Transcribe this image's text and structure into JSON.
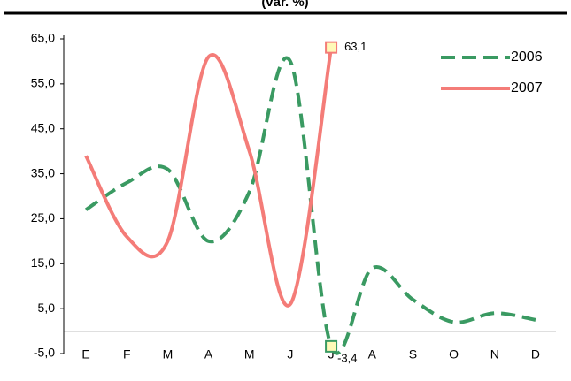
{
  "chart_data": {
    "type": "line",
    "title": "(var. %)",
    "categories": [
      "E",
      "F",
      "M",
      "A",
      "M",
      "J",
      "J",
      "A",
      "S",
      "O",
      "N",
      "D"
    ],
    "series": [
      {
        "name": "2006",
        "color": "#3a9a62",
        "dashed": true,
        "values": [
          27,
          33,
          36,
          20,
          31,
          60,
          -3.4,
          14,
          7,
          2,
          4,
          2.5
        ],
        "value_labels": [
          null,
          null,
          null,
          null,
          null,
          null,
          "-3,4",
          null,
          null,
          null,
          null,
          null
        ]
      },
      {
        "name": "2007",
        "color": "#f47c78",
        "dashed": false,
        "values": [
          39,
          21,
          20,
          61,
          40,
          6,
          63.1,
          null,
          null,
          null,
          null,
          null
        ],
        "value_labels": [
          null,
          null,
          null,
          null,
          null,
          null,
          "63,1",
          null,
          null,
          null,
          null,
          null
        ]
      }
    ],
    "ylim": [
      -5,
      65
    ],
    "yticks": [
      {
        "value": -5,
        "label": "-5,0"
      },
      {
        "value": 5,
        "label": "5,0"
      },
      {
        "value": 15,
        "label": "15,0"
      },
      {
        "value": 25,
        "label": "25,0"
      },
      {
        "value": 35,
        "label": "35,0"
      },
      {
        "value": 45,
        "label": "45,0"
      },
      {
        "value": 55,
        "label": "55,0"
      },
      {
        "value": 65,
        "label": "65,0"
      }
    ],
    "grid": false,
    "legend": "upper right"
  }
}
